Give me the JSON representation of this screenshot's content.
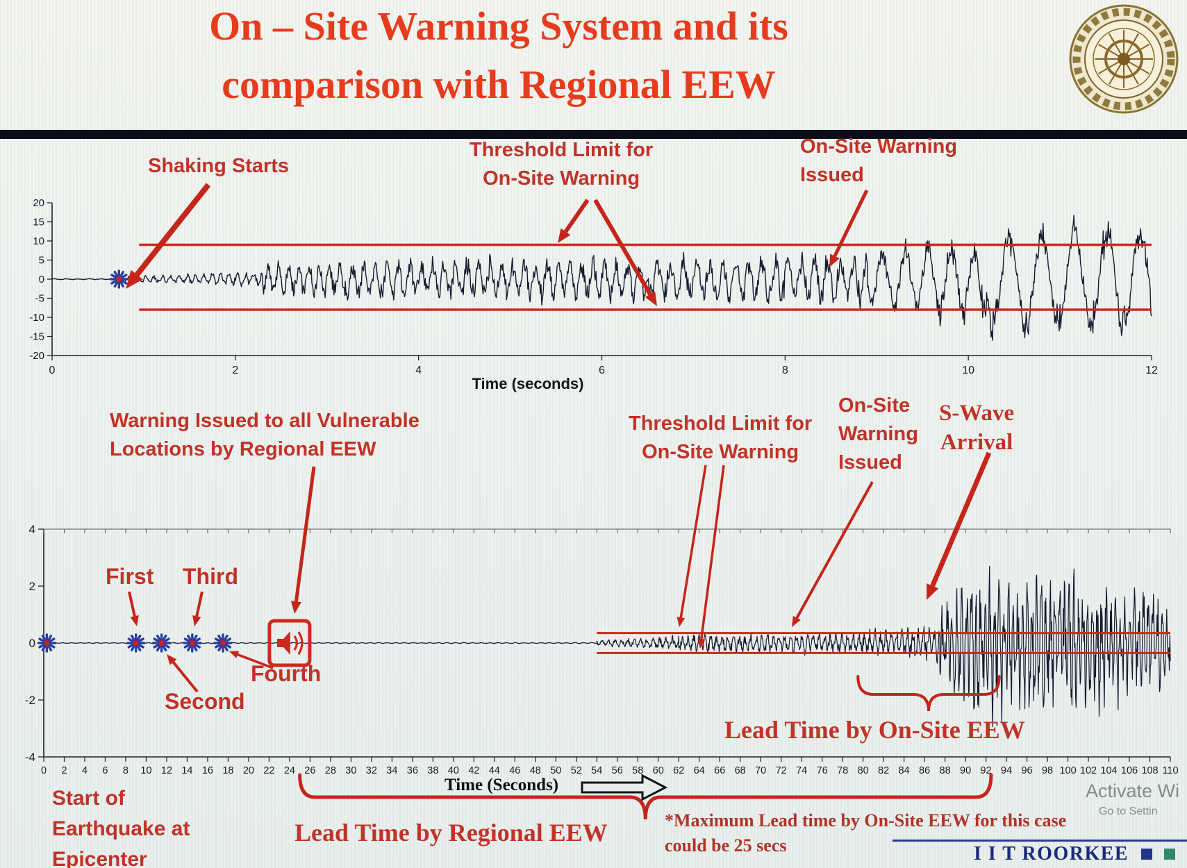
{
  "title": {
    "line1": "On – Site Warning System and its",
    "line2": "comparison with Regional EEW"
  },
  "colors": {
    "title_red": "#e63c1e",
    "annotation_red": "#c5251b",
    "threshold_red": "#cf281e",
    "waveform": "#141c30",
    "star_blue": "#2a3fa0",
    "star_center": "#cc1f1f",
    "brand_navy": "#1b2a78",
    "note_red": "#b23326",
    "axis_ink": "#1c1c1c"
  },
  "chart_data": [
    {
      "id": "onsite-accelerogram",
      "type": "line",
      "xlabel": "Time (seconds)",
      "xlim": [
        0,
        12
      ],
      "x_ticks": [
        0,
        2,
        4,
        6,
        8,
        10,
        12
      ],
      "ylim": [
        -20,
        20
      ],
      "y_ticks": [
        20,
        15,
        10,
        5,
        0,
        -5,
        -10,
        -15,
        -20
      ],
      "grid": false,
      "legend": "none",
      "threshold_upper": 9,
      "threshold_lower": -8,
      "threshold_start_t": 0.95,
      "sample_step": 0.008,
      "events": {
        "shaking_starts_t": 0.73,
        "onsite_warning_issued_t": 9.2
      },
      "envelope": [
        {
          "t0": 0.0,
          "t1": 0.73,
          "a0": 0.1,
          "a1": 0.12,
          "f": 8,
          "n": 1
        },
        {
          "t0": 0.73,
          "t1": 2.3,
          "a0": 0.7,
          "a1": 1.7,
          "f": 11,
          "n": 1
        },
        {
          "t0": 2.3,
          "t1": 3.2,
          "a0": 3.8,
          "a1": 4.6,
          "f": 9,
          "n": 0.9
        },
        {
          "t0": 3.2,
          "t1": 6.5,
          "a0": 4.4,
          "a1": 5.0,
          "f": 8,
          "n": 0.9
        },
        {
          "t0": 6.5,
          "t1": 8.9,
          "a0": 5.0,
          "a1": 6.2,
          "f": 7,
          "n": 0.9
        },
        {
          "t0": 8.9,
          "t1": 10.2,
          "a0": 7.0,
          "a1": 12.5,
          "f": 4,
          "n": 0.5
        },
        {
          "t0": 10.2,
          "t1": 12.0,
          "a0": 14.5,
          "a1": 16.0,
          "f": 2.8,
          "n": 0.3
        }
      ]
    },
    {
      "id": "regional-record",
      "type": "line",
      "xlabel": "Time (Seconds)",
      "xlim": [
        0,
        110
      ],
      "x_tick_step": 2,
      "ylim": [
        -4,
        4
      ],
      "y_ticks": [
        4,
        2,
        0,
        -2,
        -4
      ],
      "grid": false,
      "legend": "none",
      "threshold_upper": 0.35,
      "threshold_lower": -0.35,
      "threshold_start_t": 54,
      "sample_step": 0.05,
      "events": {
        "earthquake_start_t": 0.3,
        "p_detections": [
          {
            "name": "First",
            "t": 9.0
          },
          {
            "name": "Second",
            "t": 11.5
          },
          {
            "name": "Third",
            "t": 14.5
          },
          {
            "name": "Fourth",
            "t": 17.5
          }
        ],
        "regional_warning_issued_t": 24,
        "onsite_warning_issued_t": 80,
        "s_wave_arrival_t": 88.5,
        "lead_time_regional_span": [
          25,
          92.5
        ],
        "lead_time_onsite_span": [
          79.5,
          93.3
        ],
        "max_onsite_lead_time_secs": 25
      },
      "envelope": [
        {
          "t0": 0,
          "t1": 54,
          "a0": 0.012,
          "a1": 0.015,
          "f": 1.2,
          "n": 1
        },
        {
          "t0": 54,
          "t1": 62,
          "a0": 0.07,
          "a1": 0.22,
          "f": 1.6,
          "n": 1.1
        },
        {
          "t0": 62,
          "t1": 79,
          "a0": 0.24,
          "a1": 0.3,
          "f": 1.8,
          "n": 1.2
        },
        {
          "t0": 79,
          "t1": 87.5,
          "a0": 0.34,
          "a1": 0.5,
          "f": 1.9,
          "n": 1.2
        },
        {
          "t0": 87.5,
          "t1": 91,
          "a0": 0.9,
          "a1": 2.1,
          "f": 2.1,
          "n": 1.25
        },
        {
          "t0": 91,
          "t1": 101,
          "a0": 2.1,
          "a1": 1.9,
          "f": 2.2,
          "n": 1.25
        },
        {
          "t0": 101,
          "t1": 110,
          "a0": 1.8,
          "a1": 1.4,
          "f": 2.2,
          "n": 1.2
        }
      ]
    }
  ],
  "annotations": {
    "top": {
      "shaking": "Shaking Starts",
      "threshold_l1": "Threshold Limit for",
      "threshold_l2": "On-Site Warning",
      "issued_l1": "On-Site Warning",
      "issued_l2": "Issued"
    },
    "bottom": {
      "regional_l1": "Warning Issued to all Vulnerable",
      "regional_l2": "Locations by Regional EEW",
      "threshold_l1": "Threshold Limit for",
      "threshold_l2": "On-Site Warning",
      "issued_l1": "On-Site",
      "issued_l2": "Warning",
      "issued_l3": "Issued",
      "swave_l1": "S-Wave",
      "swave_l2": "Arrival",
      "start_l1": "Start of",
      "start_l2": "Earthquake at",
      "start_l3": "Epicenter",
      "lead_onsite": "Lead Time by On-Site EEW",
      "lead_regional": "Lead Time by Regional EEW",
      "note_l1": "*Maximum Lead time by On-Site EEW for this case",
      "note_l2": "could be 25 secs"
    }
  },
  "footer": {
    "brand": "I I T ROORKEE",
    "watermark_l1": "Activate Wi",
    "watermark_l2": "Go to Settin"
  }
}
